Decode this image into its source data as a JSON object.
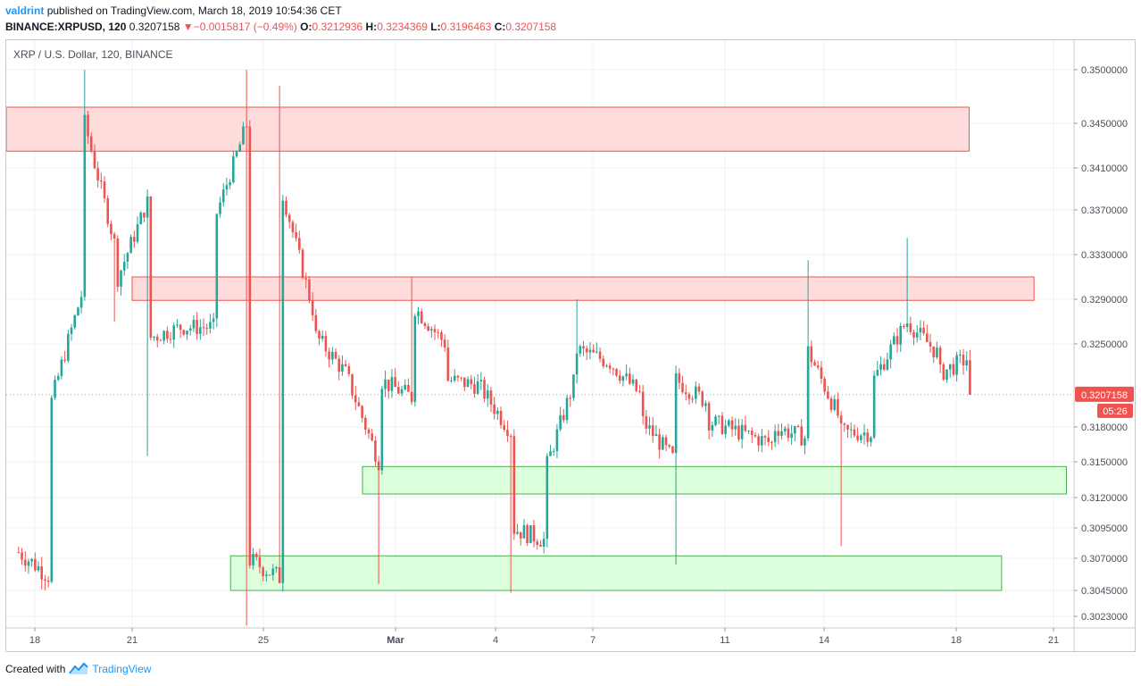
{
  "header": {
    "user": "valdrint",
    "published_text": "published on TradingView.com, March 18, 2019 10:54:36 CET",
    "symbol": "BINANCE:XRPUSD, 120",
    "last": "0.3207158",
    "change_arrow": "▼",
    "change": "−0.0015817 (−0.49%)",
    "o_key": "O:",
    "o_val": "0.3212936",
    "h_key": "H:",
    "h_val": "0.3234369",
    "l_key": "L:",
    "l_val": "0.3196463",
    "c_key": "C:",
    "c_val": "0.3207158"
  },
  "footer": {
    "created_with": "Created with",
    "brand": "TradingView"
  },
  "colors": {
    "up": "#26a69a",
    "down": "#ef5350",
    "resistance_fill": "#ffd6d6",
    "resistance_stroke": "#ef5350",
    "support_fill": "#d6ffd6",
    "support_stroke": "#4caf50",
    "grid": "#eef0f3",
    "price_tag": "#ef5350"
  },
  "chart_data": {
    "type": "candlestick",
    "title": "XRP / U.S. Dollar, 120, BINANCE",
    "price_axis_ticks": [
      "0.3500000",
      "0.3450000",
      "0.3410000",
      "0.3370000",
      "0.3330000",
      "0.3290000",
      "0.3250000",
      "0.3180000",
      "0.3150000",
      "0.3120000",
      "0.3095000",
      "0.3070000",
      "0.3045000",
      "0.3023000"
    ],
    "date_axis_ticks": [
      "18",
      "21",
      "25",
      "Mar",
      "4",
      "7",
      "11",
      "14",
      "18",
      "21"
    ],
    "last_price_label": "0.3207158",
    "countdown_label": "05:26",
    "grid": true,
    "zones": [
      {
        "kind": "resistance",
        "price_low": 0.3425,
        "price_high": 0.3465,
        "start": "Feb 17",
        "end": "Mar 18"
      },
      {
        "kind": "resistance",
        "price_low": 0.3289,
        "price_high": 0.331,
        "start": "Feb 21",
        "end": "Mar 20"
      },
      {
        "kind": "support",
        "price_low": 0.3123,
        "price_high": 0.3146,
        "start": "Feb 28",
        "end": "Mar 21"
      },
      {
        "kind": "support",
        "price_low": 0.3045,
        "price_high": 0.3072,
        "start": "Feb 24",
        "end": "Mar 19"
      }
    ],
    "anchors": [
      {
        "date": "Feb 17",
        "price": 0.3075
      },
      {
        "date": "Feb 18",
        "price": 0.3055
      },
      {
        "date": "Feb 18",
        "price": 0.32
      },
      {
        "date": "Feb 19",
        "price": 0.33
      },
      {
        "date": "Feb 19",
        "price": 0.3455
      },
      {
        "date": "Feb 20",
        "price": 0.3335
      },
      {
        "date": "Feb 20",
        "price": 0.3305
      },
      {
        "date": "Feb 21",
        "price": 0.338
      },
      {
        "date": "Feb 21",
        "price": 0.3255
      },
      {
        "date": "Feb 22",
        "price": 0.3265
      },
      {
        "date": "Feb 23",
        "price": 0.3265
      },
      {
        "date": "Feb 23",
        "price": 0.336
      },
      {
        "date": "Feb 24",
        "price": 0.345
      },
      {
        "date": "Feb 24",
        "price": 0.342
      },
      {
        "date": "Feb 24",
        "price": 0.307
      },
      {
        "date": "Feb 25",
        "price": 0.3055
      },
      {
        "date": "Feb 25",
        "price": 0.3085
      },
      {
        "date": "Feb 25",
        "price": 0.3395
      },
      {
        "date": "Feb 26",
        "price": 0.328
      },
      {
        "date": "Feb 26",
        "price": 0.326
      },
      {
        "date": "Feb 27",
        "price": 0.3225
      },
      {
        "date": "Feb 28",
        "price": 0.315
      },
      {
        "date": "Feb 28",
        "price": 0.322
      },
      {
        "date": "Mar 1",
        "price": 0.3205
      },
      {
        "date": "Mar 1",
        "price": 0.3285
      },
      {
        "date": "Mar 2",
        "price": 0.325
      },
      {
        "date": "Mar 2",
        "price": 0.322
      },
      {
        "date": "Mar 3",
        "price": 0.3215
      },
      {
        "date": "Mar 4",
        "price": 0.3175
      },
      {
        "date": "Mar 4",
        "price": 0.3095
      },
      {
        "date": "Mar 5",
        "price": 0.3085
      },
      {
        "date": "Mar 5",
        "price": 0.314
      },
      {
        "date": "Mar 6",
        "price": 0.3225
      },
      {
        "date": "Mar 6",
        "price": 0.3245
      },
      {
        "date": "Mar 7",
        "price": 0.3235
      },
      {
        "date": "Mar 8",
        "price": 0.3205
      },
      {
        "date": "Mar 8",
        "price": 0.3185
      },
      {
        "date": "Mar 9",
        "price": 0.315
      },
      {
        "date": "Mar 9",
        "price": 0.322
      },
      {
        "date": "Mar 10",
        "price": 0.32
      },
      {
        "date": "Mar 10",
        "price": 0.3185
      },
      {
        "date": "Mar 11",
        "price": 0.3175
      },
      {
        "date": "Mar 12",
        "price": 0.3165
      },
      {
        "date": "Mar 12",
        "price": 0.318
      },
      {
        "date": "Mar 13",
        "price": 0.317
      },
      {
        "date": "Mar 13",
        "price": 0.3245
      },
      {
        "date": "Mar 14",
        "price": 0.3185
      },
      {
        "date": "Mar 14",
        "price": 0.3175
      },
      {
        "date": "Mar 15",
        "price": 0.3175
      },
      {
        "date": "Mar 15",
        "price": 0.322
      },
      {
        "date": "Mar 16",
        "price": 0.327
      },
      {
        "date": "Mar 17",
        "price": 0.324
      },
      {
        "date": "Mar 17",
        "price": 0.3225
      },
      {
        "date": "Mar 18",
        "price": 0.324
      },
      {
        "date": "Mar 18",
        "price": 0.3207158
      }
    ],
    "spikes": [
      {
        "date": "Feb 19",
        "high": 0.352
      },
      {
        "date": "Feb 20",
        "low": 0.327
      },
      {
        "date": "Feb 21",
        "low": 0.3155
      },
      {
        "date": "Feb 24",
        "high": 0.3515
      },
      {
        "date": "Feb 24",
        "low": 0.3015
      },
      {
        "date": "Feb 25",
        "high": 0.3485
      },
      {
        "date": "Feb 28",
        "low": 0.305
      },
      {
        "date": "Mar 1",
        "high": 0.331
      },
      {
        "date": "Mar 4",
        "low": 0.3043
      },
      {
        "date": "Mar 6",
        "high": 0.329
      },
      {
        "date": "Mar 9",
        "low": 0.3065
      },
      {
        "date": "Mar 13",
        "high": 0.3325
      },
      {
        "date": "Mar 14",
        "low": 0.308
      },
      {
        "date": "Mar 16",
        "high": 0.3345
      }
    ]
  }
}
